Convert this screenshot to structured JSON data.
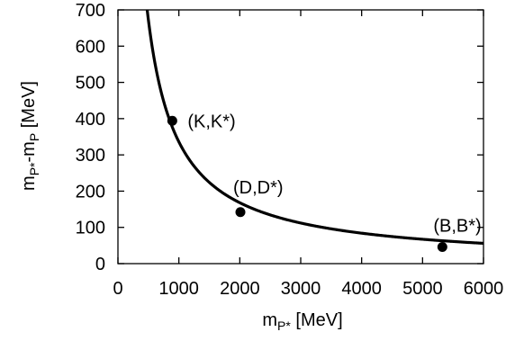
{
  "chart_data": {
    "type": "line",
    "xlabel": {
      "main": "m",
      "sub": "P*",
      "unit": " [MeV]"
    },
    "ylabel": {
      "m1": "m",
      "s1": "P*",
      "dash": "-",
      "m2": "m",
      "s2": "P",
      "unit": " [MeV]"
    },
    "xlim": [
      0,
      6000
    ],
    "ylim": [
      0,
      700
    ],
    "xticks": [
      "0",
      "1000",
      "2000",
      "3000",
      "4000",
      "5000",
      "6000"
    ],
    "yticks": [
      "0",
      "100",
      "200",
      "300",
      "400",
      "500",
      "600",
      "700"
    ],
    "grid": false,
    "series": [
      {
        "curve_form": "y = a / x",
        "a": 336000,
        "x_range": [
          480,
          6000
        ]
      }
    ],
    "points": [
      {
        "label": "(K,K*)",
        "x": 892,
        "y": 394
      },
      {
        "label": "(D,D*)",
        "x": 2010,
        "y": 142
      },
      {
        "label": "(B,B*)",
        "x": 5325,
        "y": 46
      }
    ]
  },
  "colors": {
    "line": "#000000",
    "axis": "#000000",
    "background": "#ffffff"
  }
}
